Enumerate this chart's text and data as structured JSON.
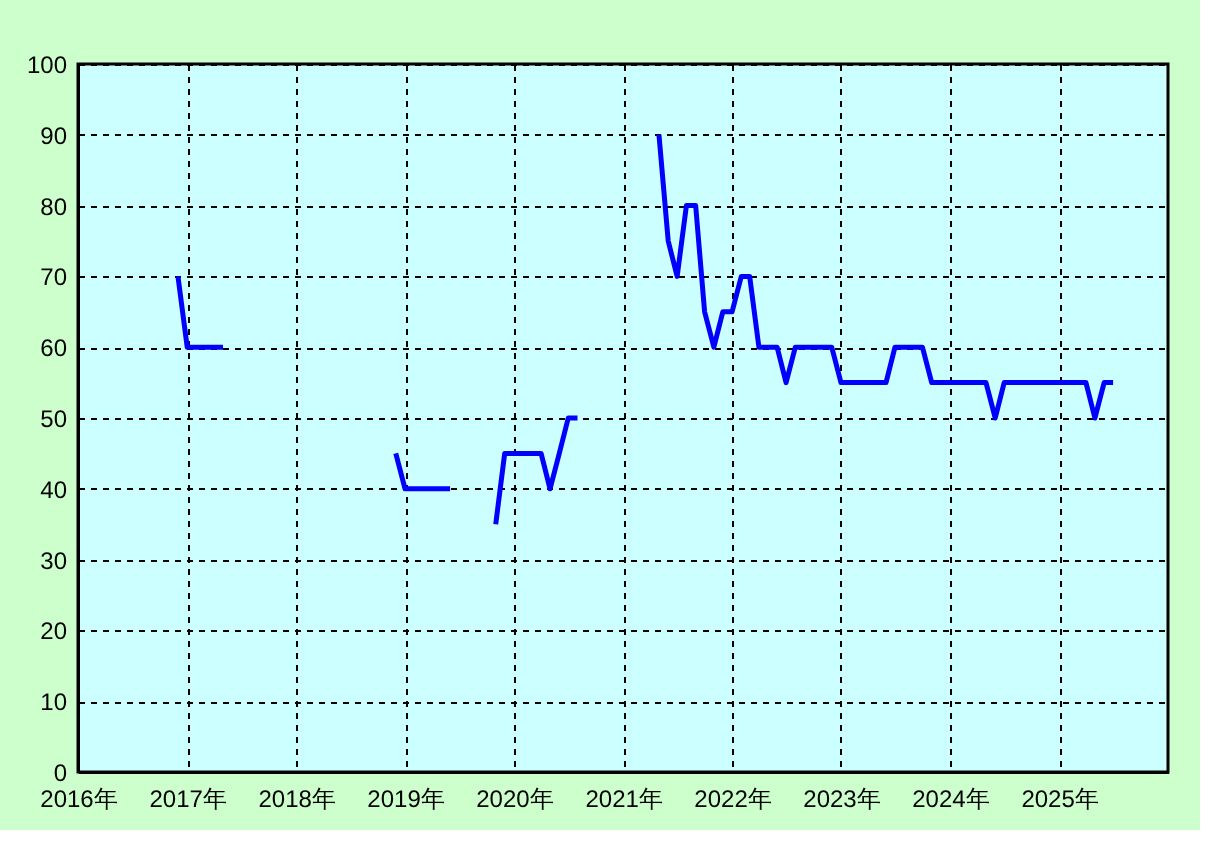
{
  "chart_data": {
    "type": "line",
    "x": [
      "2016-12",
      "2017-01",
      "2017-02",
      "2017-03",
      "2017-04",
      "2017-05",
      "2017-06",
      "2018-12",
      "2019-01",
      "2019-02",
      "2019-03",
      "2019-04",
      "2019-05",
      "2019-06",
      "2019-07",
      "2019-11",
      "2019-12",
      "2020-01",
      "2020-02",
      "2020-03",
      "2020-04",
      "2020-05",
      "2020-06",
      "2020-07",
      "2020-08",
      "2020-09",
      "2021-05",
      "2021-06",
      "2021-07",
      "2021-08",
      "2021-09",
      "2021-10",
      "2021-11",
      "2021-12",
      "2022-01",
      "2022-02",
      "2022-03",
      "2022-04",
      "2022-05",
      "2022-06",
      "2022-07",
      "2022-08",
      "2022-09",
      "2022-10",
      "2022-11",
      "2022-12",
      "2023-01",
      "2023-02",
      "2023-03",
      "2023-04",
      "2023-05",
      "2023-06",
      "2023-07",
      "2023-08",
      "2023-09",
      "2023-10",
      "2023-11",
      "2023-12",
      "2024-01",
      "2024-02",
      "2024-03",
      "2024-04",
      "2024-05",
      "2024-06",
      "2024-07",
      "2024-08",
      "2024-09",
      "2024-10",
      "2024-11",
      "2024-12",
      "2025-01",
      "2025-02",
      "2025-03",
      "2025-04",
      "2025-05",
      "2025-06",
      "2025-07"
    ],
    "series": [
      {
        "color": "#0000ff",
        "values": [
          70,
          60,
          60,
          60,
          60,
          60,
          null,
          45,
          40,
          40,
          40,
          40,
          40,
          40,
          null,
          35,
          45,
          45,
          45,
          45,
          45,
          40,
          45,
          50,
          50,
          null,
          90,
          75,
          70,
          80,
          80,
          65,
          60,
          65,
          65,
          70,
          70,
          60,
          60,
          60,
          55,
          60,
          60,
          60,
          60,
          60,
          55,
          55,
          55,
          55,
          55,
          55,
          60,
          60,
          60,
          60,
          55,
          55,
          55,
          55,
          55,
          55,
          55,
          50,
          55,
          55,
          55,
          55,
          55,
          55,
          55,
          55,
          55,
          55,
          50,
          55,
          55
        ]
      }
    ],
    "xlim": [
      "2016",
      "2026"
    ],
    "xticks": [
      {
        "value": "2016",
        "label": "2016年"
      },
      {
        "value": "2017",
        "label": "2017年"
      },
      {
        "value": "2018",
        "label": "2018年"
      },
      {
        "value": "2019",
        "label": "2019年"
      },
      {
        "value": "2020",
        "label": "2020年"
      },
      {
        "value": "2021",
        "label": "2021年"
      },
      {
        "value": "2022",
        "label": "2022年"
      },
      {
        "value": "2023",
        "label": "2023年"
      },
      {
        "value": "2024",
        "label": "2024年"
      },
      {
        "value": "2025",
        "label": "2025年"
      }
    ],
    "ylim": [
      0,
      100
    ],
    "yticks": [
      0,
      10,
      20,
      30,
      40,
      50,
      60,
      70,
      80,
      90,
      100
    ],
    "grid": true,
    "legend": false,
    "marker": "none",
    "line_style": "solid"
  }
}
